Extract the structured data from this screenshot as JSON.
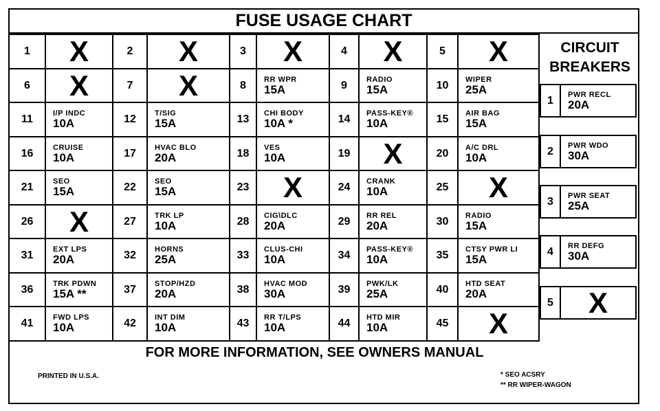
{
  "title": "FUSE USAGE CHART",
  "fuses": [
    {
      "n": "1",
      "x": true
    },
    {
      "n": "2",
      "x": true
    },
    {
      "n": "3",
      "x": true
    },
    {
      "n": "4",
      "x": true
    },
    {
      "n": "5",
      "x": true
    },
    {
      "n": "6",
      "x": true
    },
    {
      "n": "7",
      "x": true
    },
    {
      "n": "8",
      "label": "RR WPR",
      "amp": "15A"
    },
    {
      "n": "9",
      "label": "RADIO",
      "amp": "15A"
    },
    {
      "n": "10",
      "label": "WIPER",
      "amp": "25A"
    },
    {
      "n": "11",
      "label": "I/P INDC",
      "amp": "10A"
    },
    {
      "n": "12",
      "label": "T/SIG",
      "amp": "15A"
    },
    {
      "n": "13",
      "label": "CHI BODY",
      "amp": "10A *"
    },
    {
      "n": "14",
      "label": "PASS-KEY®",
      "amp": "10A"
    },
    {
      "n": "15",
      "label": "AIR BAG",
      "amp": "15A"
    },
    {
      "n": "16",
      "label": "CRUISE",
      "amp": "10A"
    },
    {
      "n": "17",
      "label": "HVAC BLO",
      "amp": "20A"
    },
    {
      "n": "18",
      "label": "VES",
      "amp": "10A"
    },
    {
      "n": "19",
      "x": true
    },
    {
      "n": "20",
      "label": "A/C DRL",
      "amp": "10A"
    },
    {
      "n": "21",
      "label": "SEO",
      "amp": "15A"
    },
    {
      "n": "22",
      "label": "SEO",
      "amp": "15A"
    },
    {
      "n": "23",
      "x": true
    },
    {
      "n": "24",
      "label": "CRANK",
      "amp": "10A"
    },
    {
      "n": "25",
      "x": true
    },
    {
      "n": "26",
      "x": true
    },
    {
      "n": "27",
      "label": "TRK LP",
      "amp": "10A"
    },
    {
      "n": "28",
      "label": "CIG\\DLC",
      "amp": "20A"
    },
    {
      "n": "29",
      "label": "RR REL",
      "amp": "20A"
    },
    {
      "n": "30",
      "label": "RADIO",
      "amp": "15A"
    },
    {
      "n": "31",
      "label": "EXT LPS",
      "amp": "20A"
    },
    {
      "n": "32",
      "label": "HORNS",
      "amp": "25A"
    },
    {
      "n": "33",
      "label": "CLUS-CHI",
      "amp": "10A"
    },
    {
      "n": "34",
      "label": "PASS-KEY®",
      "amp": "10A"
    },
    {
      "n": "35",
      "label": "CTSY PWR LI",
      "amp": "15A"
    },
    {
      "n": "36",
      "label": "TRK PDWN",
      "amp": "15A **"
    },
    {
      "n": "37",
      "label": "STOP/HZD",
      "amp": "20A"
    },
    {
      "n": "38",
      "label": "HVAC MOD",
      "amp": "30A"
    },
    {
      "n": "39",
      "label": "PWK/LK",
      "amp": "25A"
    },
    {
      "n": "40",
      "label": "HTD SEAT",
      "amp": "20A"
    },
    {
      "n": "41",
      "label": "FWD LPS",
      "amp": "10A"
    },
    {
      "n": "42",
      "label": "INT DIM",
      "amp": "10A"
    },
    {
      "n": "43",
      "label": "RR T/LPS",
      "amp": "10A"
    },
    {
      "n": "44",
      "label": "HTD MIR",
      "amp": "10A"
    },
    {
      "n": "45",
      "x": true
    }
  ],
  "unused_mark": "X",
  "circuit_breakers": {
    "heading_line1": "CIRCUIT",
    "heading_line2": "BREAKERS",
    "items": [
      {
        "n": "1",
        "label": "PWR RECL",
        "amp": "20A"
      },
      {
        "n": "2",
        "label": "PWR WDO",
        "amp": "30A"
      },
      {
        "n": "3",
        "label": "PWR SEAT",
        "amp": "25A"
      },
      {
        "n": "4",
        "label": "RR DEFG",
        "amp": "30A"
      },
      {
        "n": "5",
        "x": true
      }
    ]
  },
  "footer": "FOR MORE INFORMATION, SEE OWNERS MANUAL",
  "printed": "PRINTED IN U.S.A.",
  "footnotes": [
    "* SEO ACSRY",
    "** RR WIPER-WAGON"
  ]
}
